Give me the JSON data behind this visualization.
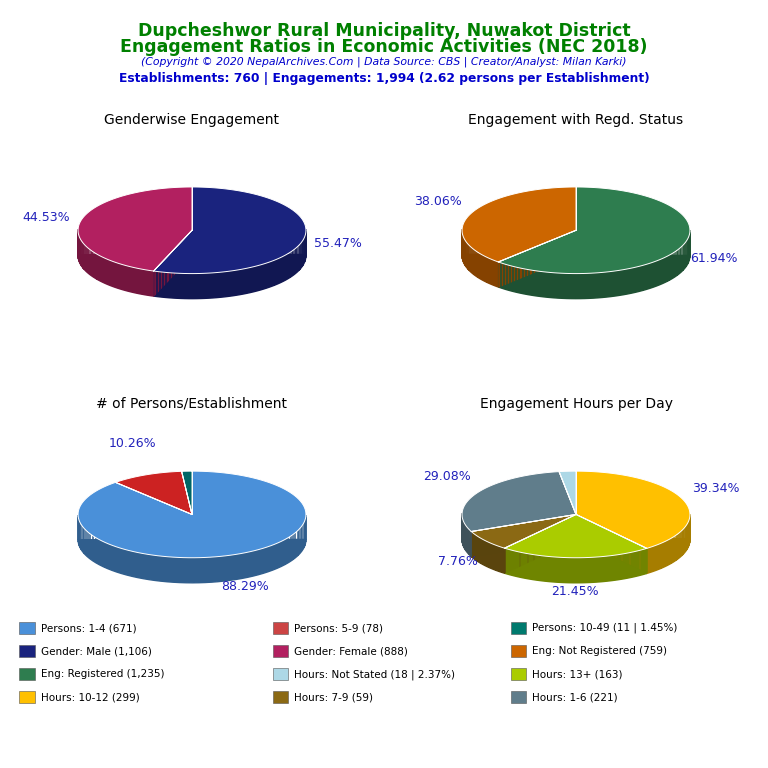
{
  "title_line1": "Dupcheshwor Rural Municipality, Nuwakot District",
  "title_line2": "Engagement Ratios in Economic Activities (NEC 2018)",
  "subtitle": "(Copyright © 2020 NepalArchives.Com | Data Source: CBS | Creator/Analyst: Milan Karki)",
  "stats_line": "Establishments: 760 | Engagements: 1,994 (2.62 persons per Establishment)",
  "title_color": "#008000",
  "subtitle_color": "#0000cc",
  "stats_color": "#0000cc",
  "pie1_title": "Genderwise Engagement",
  "pie1_values": [
    55.47,
    44.53
  ],
  "pie1_colors": [
    "#1a237e",
    "#b22060"
  ],
  "pie1_labels": [
    "55.47%",
    "44.53%"
  ],
  "pie2_title": "Engagement with Regd. Status",
  "pie2_values": [
    61.94,
    38.06
  ],
  "pie2_colors": [
    "#2e7d4f",
    "#cc6600"
  ],
  "pie2_labels": [
    "61.94%",
    "38.06%"
  ],
  "pie3_title": "# of Persons/Establishment",
  "pie3_values": [
    88.29,
    10.26,
    1.45
  ],
  "pie3_colors": [
    "#4a90d9",
    "#cc2222",
    "#006666"
  ],
  "pie3_labels": [
    "88.29%",
    "10.26%",
    ""
  ],
  "pie4_title": "Engagement Hours per Day",
  "pie4_values": [
    39.34,
    21.45,
    7.76,
    29.08,
    2.37
  ],
  "pie4_colors": [
    "#ffc000",
    "#aacc00",
    "#8b6914",
    "#607d8b",
    "#add8e6"
  ],
  "pie4_labels": [
    "39.34%",
    "21.45%",
    "7.76%",
    "29.08%",
    ""
  ],
  "legend_items": [
    {
      "label": "Persons: 1-4 (671)",
      "color": "#4a90d9"
    },
    {
      "label": "Persons: 5-9 (78)",
      "color": "#cc4444"
    },
    {
      "label": "Persons: 10-49 (11 | 1.45%)",
      "color": "#007a6e"
    },
    {
      "label": "Gender: Male (1,106)",
      "color": "#1a237e"
    },
    {
      "label": "Gender: Female (888)",
      "color": "#b22060"
    },
    {
      "label": "Eng: Not Registered (759)",
      "color": "#cc6600"
    },
    {
      "label": "Eng: Registered (1,235)",
      "color": "#2e7d4f"
    },
    {
      "label": "Hours: Not Stated (18 | 2.37%)",
      "color": "#add8e6"
    },
    {
      "label": "Hours: 13+ (163)",
      "color": "#aacc00"
    },
    {
      "label": "Hours: 10-12 (299)",
      "color": "#ffc000"
    },
    {
      "label": "Hours: 7-9 (59)",
      "color": "#8b6914"
    },
    {
      "label": "Hours: 1-6 (221)",
      "color": "#607d8b"
    }
  ]
}
